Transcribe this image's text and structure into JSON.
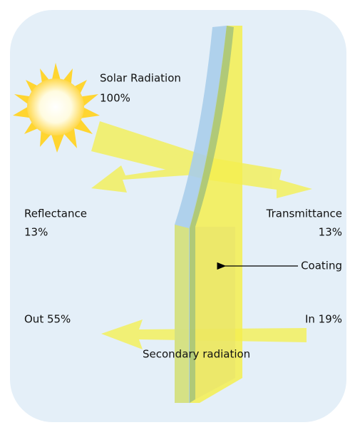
{
  "labels": {
    "solar": {
      "name": "Solar Radiation",
      "value": "100%"
    },
    "reflectance": {
      "name": "Reflectance",
      "value": "13%"
    },
    "transmittance": {
      "name": "Transmittance",
      "value": "13%"
    },
    "coating": "Coating",
    "out": "Out 55%",
    "in": "In 19%",
    "secondary": "Secondary radiation"
  }
}
